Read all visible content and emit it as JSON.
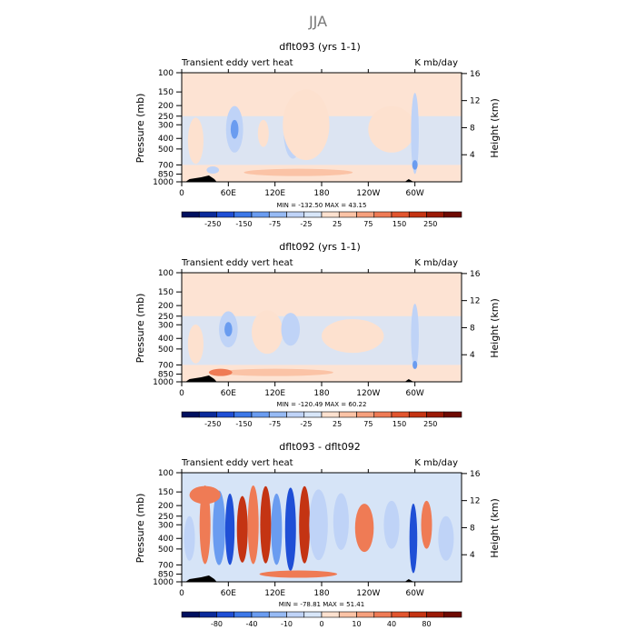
{
  "page_title": "JJA",
  "colors": {
    "white": "#ffffff",
    "land": "#000000",
    "plot_bg_pos": "#fde3d3",
    "plot_bg_neg": "#d6e4f7"
  },
  "chart_data": [
    {
      "type": "heatmap",
      "title": "dflt093 (yrs 1-1)",
      "left_label": "Transient eddy vert heat",
      "right_label": "K mb/day",
      "xlabel": "",
      "ylabel": "Pressure (mb)",
      "ylabel_right": "Height (km)",
      "x_ticks": [
        "0",
        "60E",
        "120E",
        "180",
        "120W",
        "60W"
      ],
      "x_tick_positions_deg": [
        0,
        60,
        120,
        180,
        240,
        300
      ],
      "xlim": [
        0,
        360
      ],
      "y_ticks": [
        "100",
        "150",
        "200",
        "250",
        "300",
        "400",
        "500",
        "700",
        "850",
        "1000"
      ],
      "y_tick_values": [
        100,
        150,
        200,
        250,
        300,
        400,
        500,
        700,
        850,
        1000
      ],
      "ylim": [
        1000,
        100
      ],
      "y_scale": "log",
      "height_ticks": [
        "4",
        "8",
        "12",
        "16"
      ],
      "min_max_text": "MIN = -132.50   MAX =  43.15",
      "colorbar_labels": [
        "-250",
        "-150",
        "-75",
        "-25",
        "25",
        "75",
        "150",
        "250"
      ],
      "colorbar_colors": [
        "#00105e",
        "#0a2a9b",
        "#1f4fd6",
        "#3d78e8",
        "#6a9cf0",
        "#96baf4",
        "#bfd3f7",
        "#d8e6f8",
        "#fde1cf",
        "#fbc3a6",
        "#f6a07d",
        "#ef7b55",
        "#e2552f",
        "#c43413",
        "#9b1a06",
        "#6e0a02"
      ],
      "background": "positive",
      "features": [
        {
          "lon": 18,
          "p": 420,
          "w": 20,
          "h": 380,
          "value": -25
        },
        {
          "lon": 68,
          "p": 330,
          "w": 22,
          "h": 300,
          "value": -75
        },
        {
          "lon": 68,
          "p": 330,
          "w": 10,
          "h": 130,
          "value": -150
        },
        {
          "lon": 105,
          "p": 360,
          "w": 14,
          "h": 200,
          "value": -25
        },
        {
          "lon": 143,
          "p": 340,
          "w": 24,
          "h": 360,
          "value": -75
        },
        {
          "lon": 143,
          "p": 340,
          "w": 11,
          "h": 170,
          "value": -150
        },
        {
          "lon": 160,
          "p": 300,
          "w": 60,
          "h": 380,
          "value": -25
        },
        {
          "lon": 270,
          "p": 330,
          "w": 60,
          "h": 300,
          "value": -25
        },
        {
          "lon": 300,
          "p": 360,
          "w": 10,
          "h": 500,
          "value": -75
        },
        {
          "lon": 300,
          "p": 700,
          "w": 7,
          "h": 140,
          "value": -150
        },
        {
          "lon": 40,
          "p": 780,
          "w": 16,
          "h": 80,
          "value": -75
        },
        {
          "lon": 150,
          "p": 820,
          "w": 140,
          "h": 40,
          "value": 25
        }
      ]
    },
    {
      "type": "heatmap",
      "title": "dflt092 (yrs 1-1)",
      "left_label": "Transient eddy vert heat",
      "right_label": "K mb/day",
      "xlabel": "",
      "ylabel": "Pressure (mb)",
      "ylabel_right": "Height (km)",
      "x_ticks": [
        "0",
        "60E",
        "120E",
        "180",
        "120W",
        "60W"
      ],
      "x_tick_positions_deg": [
        0,
        60,
        120,
        180,
        240,
        300
      ],
      "xlim": [
        0,
        360
      ],
      "y_ticks": [
        "100",
        "150",
        "200",
        "250",
        "300",
        "400",
        "500",
        "700",
        "850",
        "1000"
      ],
      "y_tick_values": [
        100,
        150,
        200,
        250,
        300,
        400,
        500,
        700,
        850,
        1000
      ],
      "ylim": [
        1000,
        100
      ],
      "y_scale": "log",
      "height_ticks": [
        "4",
        "8",
        "12",
        "16"
      ],
      "min_max_text": "MIN = -120.49   MAX =  60.22",
      "colorbar_labels": [
        "-250",
        "-150",
        "-75",
        "-25",
        "25",
        "75",
        "150",
        "250"
      ],
      "colorbar_colors": [
        "#00105e",
        "#0a2a9b",
        "#1f4fd6",
        "#3d78e8",
        "#6a9cf0",
        "#96baf4",
        "#bfd3f7",
        "#d8e6f8",
        "#fde1cf",
        "#fbc3a6",
        "#f6a07d",
        "#ef7b55",
        "#e2552f",
        "#c43413",
        "#9b1a06",
        "#6e0a02"
      ],
      "background": "positive",
      "features": [
        {
          "lon": 18,
          "p": 450,
          "w": 20,
          "h": 350,
          "value": -25
        },
        {
          "lon": 60,
          "p": 330,
          "w": 24,
          "h": 240,
          "value": -75
        },
        {
          "lon": 60,
          "p": 330,
          "w": 10,
          "h": 100,
          "value": -150
        },
        {
          "lon": 110,
          "p": 350,
          "w": 40,
          "h": 300,
          "value": -25
        },
        {
          "lon": 140,
          "p": 330,
          "w": 24,
          "h": 220,
          "value": -75
        },
        {
          "lon": 220,
          "p": 380,
          "w": 80,
          "h": 260,
          "value": -25
        },
        {
          "lon": 300,
          "p": 380,
          "w": 10,
          "h": 450,
          "value": -75
        },
        {
          "lon": 300,
          "p": 700,
          "w": 6,
          "h": 120,
          "value": -150
        },
        {
          "lon": 120,
          "p": 820,
          "w": 150,
          "h": 40,
          "value": 25
        },
        {
          "lon": 50,
          "p": 820,
          "w": 30,
          "h": 30,
          "value": 75
        }
      ]
    },
    {
      "type": "heatmap",
      "title": "dflt093 - dflt092",
      "left_label": "Transient eddy vert heat",
      "right_label": "K mb/day",
      "xlabel": "",
      "ylabel": "Pressure (mb)",
      "ylabel_right": "Height (km)",
      "x_ticks": [
        "0",
        "60E",
        "120E",
        "180",
        "120W",
        "60W"
      ],
      "x_tick_positions_deg": [
        0,
        60,
        120,
        180,
        240,
        300
      ],
      "xlim": [
        0,
        360
      ],
      "y_ticks": [
        "100",
        "150",
        "200",
        "250",
        "300",
        "400",
        "500",
        "700",
        "850",
        "1000"
      ],
      "y_tick_values": [
        100,
        150,
        200,
        250,
        300,
        400,
        500,
        700,
        850,
        1000
      ],
      "ylim": [
        1000,
        100
      ],
      "y_scale": "log",
      "height_ticks": [
        "4",
        "8",
        "12",
        "16"
      ],
      "min_max_text": "MIN = -78.81   MAX =  51.41",
      "colorbar_labels": [
        "-80",
        "-40",
        "-10",
        "0",
        "10",
        "40",
        "80"
      ],
      "colorbar_colors": [
        "#00105e",
        "#0a2a9b",
        "#1f4fd6",
        "#3d78e8",
        "#6a9cf0",
        "#96baf4",
        "#bfd3f7",
        "#d8e6f8",
        "#fde1cf",
        "#fbc3a6",
        "#f6a07d",
        "#ef7b55",
        "#e2552f",
        "#c43413",
        "#9b1a06",
        "#6e0a02"
      ],
      "background": "mixed",
      "features": [
        {
          "lon": 10,
          "p": 400,
          "w": 14,
          "h": 350,
          "value": -10
        },
        {
          "lon": 30,
          "p": 300,
          "w": 14,
          "h": 450,
          "value": 10
        },
        {
          "lon": 48,
          "p": 320,
          "w": 16,
          "h": 420,
          "value": -40
        },
        {
          "lon": 62,
          "p": 330,
          "w": 12,
          "h": 420,
          "value": -80
        },
        {
          "lon": 78,
          "p": 330,
          "w": 14,
          "h": 400,
          "value": 40
        },
        {
          "lon": 92,
          "p": 300,
          "w": 14,
          "h": 450,
          "value": 10
        },
        {
          "lon": 108,
          "p": 300,
          "w": 14,
          "h": 420,
          "value": 40
        },
        {
          "lon": 122,
          "p": 330,
          "w": 14,
          "h": 420,
          "value": -40
        },
        {
          "lon": 140,
          "p": 330,
          "w": 14,
          "h": 500,
          "value": -80
        },
        {
          "lon": 158,
          "p": 300,
          "w": 14,
          "h": 420,
          "value": 40
        },
        {
          "lon": 176,
          "p": 300,
          "w": 24,
          "h": 380,
          "value": -10
        },
        {
          "lon": 205,
          "p": 280,
          "w": 20,
          "h": 300,
          "value": -10
        },
        {
          "lon": 235,
          "p": 320,
          "w": 24,
          "h": 300,
          "value": 10
        },
        {
          "lon": 270,
          "p": 300,
          "w": 20,
          "h": 280,
          "value": -10
        },
        {
          "lon": 298,
          "p": 400,
          "w": 10,
          "h": 500,
          "value": -80
        },
        {
          "lon": 315,
          "p": 300,
          "w": 14,
          "h": 280,
          "value": 10
        },
        {
          "lon": 340,
          "p": 400,
          "w": 20,
          "h": 350,
          "value": -10
        },
        {
          "lon": 150,
          "p": 850,
          "w": 100,
          "h": 60,
          "value": 10
        },
        {
          "lon": 30,
          "p": 160,
          "w": 40,
          "h": 60,
          "value": 10
        }
      ]
    }
  ]
}
